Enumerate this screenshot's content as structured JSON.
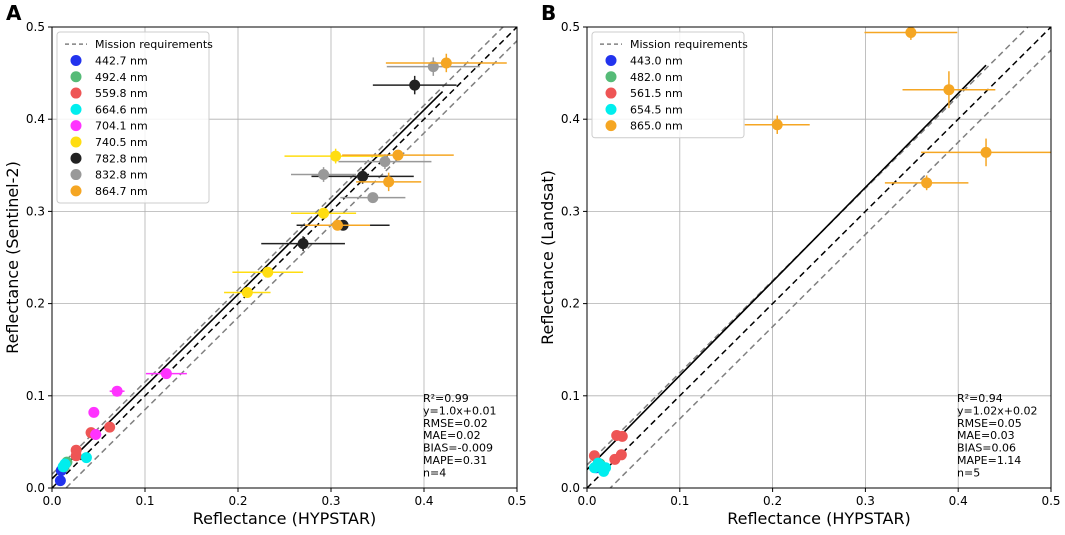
{
  "chart_data": [
    {
      "panel_label": "A",
      "type": "scatter",
      "xlabel": "Reflectance (HYPSTAR)",
      "ylabel": "Reflectance (Sentinel-2)",
      "xlim": [
        0,
        0.5
      ],
      "ylim": [
        0,
        0.5
      ],
      "xticks": [
        "0.0",
        "0.1",
        "0.2",
        "0.3",
        "0.4",
        "0.5"
      ],
      "yticks": [
        "0.0",
        "0.1",
        "0.2",
        "0.3",
        "0.4",
        "0.5"
      ],
      "grid": true,
      "legend_position": "top-left",
      "mission_label": "Mission requirements",
      "fit": {
        "slope": 1.0,
        "intercept": 0.01,
        "x_range": [
          0.0,
          0.42
        ]
      },
      "mission_band": [
        0.015,
        -0.015
      ],
      "series": [
        {
          "name": "442.7 nm",
          "color": "#2233ee",
          "points": [
            [
              0.009,
              0.008,
              0,
              0
            ],
            [
              0.01,
              0.019,
              0,
              0
            ]
          ]
        },
        {
          "name": "492.4 nm",
          "color": "#55bb77",
          "points": [
            [
              0.013,
              0.023,
              0,
              0
            ],
            [
              0.016,
              0.028,
              0,
              0
            ]
          ]
        },
        {
          "name": "559.8 nm",
          "color": "#ee5555",
          "points": [
            [
              0.026,
              0.035,
              0,
              0
            ],
            [
              0.026,
              0.041,
              0,
              0
            ],
            [
              0.042,
              0.06,
              0,
              0
            ],
            [
              0.062,
              0.066,
              0,
              0
            ]
          ]
        },
        {
          "name": "664.6 nm",
          "color": "#00eeee",
          "points": [
            [
              0.012,
              0.023,
              0.004,
              0
            ],
            [
              0.014,
              0.026,
              0.004,
              0
            ],
            [
              0.037,
              0.033,
              0.005,
              0
            ]
          ]
        },
        {
          "name": "704.1 nm",
          "color": "#ff33ff",
          "points": [
            [
              0.045,
              0.082,
              0.004,
              0.004
            ],
            [
              0.047,
              0.058,
              0.006,
              0
            ],
            [
              0.07,
              0.105,
              0.008,
              0
            ],
            [
              0.123,
              0.124,
              0.022,
              0
            ]
          ]
        },
        {
          "name": "740.5 nm",
          "color": "#ffdd11",
          "points": [
            [
              0.21,
              0.212,
              0.025,
              0
            ],
            [
              0.232,
              0.234,
              0.038,
              0
            ],
            [
              0.292,
              0.298,
              0.035,
              0
            ],
            [
              0.305,
              0.36,
              0.055,
              0.008
            ]
          ]
        },
        {
          "name": "782.8 nm",
          "color": "#222222",
          "points": [
            [
              0.27,
              0.265,
              0.045,
              0.008
            ],
            [
              0.313,
              0.285,
              0.05,
              0
            ],
            [
              0.334,
              0.338,
              0.055,
              0.008
            ],
            [
              0.39,
              0.437,
              0.045,
              0.01
            ]
          ]
        },
        {
          "name": "832.8 nm",
          "color": "#999999",
          "points": [
            [
              0.292,
              0.34,
              0.035,
              0.008
            ],
            [
              0.345,
              0.315,
              0.035,
              0
            ],
            [
              0.358,
              0.354,
              0.05,
              0.008
            ],
            [
              0.41,
              0.457,
              0.05,
              0.01
            ]
          ]
        },
        {
          "name": "864.7 nm",
          "color": "#f5a623",
          "points": [
            [
              0.307,
              0.285,
              0.035,
              0
            ],
            [
              0.362,
              0.332,
              0.035,
              0.01
            ],
            [
              0.372,
              0.361,
              0.06,
              0
            ],
            [
              0.424,
              0.461,
              0.065,
              0.01
            ]
          ]
        }
      ],
      "stats": [
        "R²=0.99",
        "y=1.0x+0.01",
        "RMSE=0.02",
        "MAE=0.02",
        "BIAS=-0.009",
        "MAPE=0.31",
        "n=4"
      ]
    },
    {
      "panel_label": "B",
      "type": "scatter",
      "xlabel": "Reflectance (HYPSTAR)",
      "ylabel": "Reflectance (Landsat)",
      "xlim": [
        0,
        0.5
      ],
      "ylim": [
        0,
        0.5
      ],
      "xticks": [
        "0.0",
        "0.1",
        "0.2",
        "0.3",
        "0.4",
        "0.5"
      ],
      "yticks": [
        "0.0",
        "0.1",
        "0.2",
        "0.3",
        "0.4",
        "0.5"
      ],
      "grid": true,
      "legend_position": "top-left",
      "mission_label": "Mission requirements",
      "fit": {
        "slope": 1.02,
        "intercept": 0.02,
        "x_range": [
          0.0,
          0.43
        ]
      },
      "mission_band": [
        0.025,
        -0.025
      ],
      "series": [
        {
          "name": "443.0 nm",
          "color": "#2233ee",
          "points": [
            [
              0.01,
              0.022,
              0,
              0
            ]
          ]
        },
        {
          "name": "482.0 nm",
          "color": "#55bb77",
          "points": [
            [
              0.014,
              0.026,
              0,
              0
            ]
          ]
        },
        {
          "name": "561.5 nm",
          "color": "#ee5555",
          "points": [
            [
              0.008,
              0.035,
              0,
              0
            ],
            [
              0.03,
              0.031,
              0,
              0
            ],
            [
              0.032,
              0.057,
              0,
              0
            ],
            [
              0.038,
              0.056,
              0,
              0
            ],
            [
              0.037,
              0.036,
              0,
              0
            ]
          ]
        },
        {
          "name": "654.5 nm",
          "color": "#00eeee",
          "points": [
            [
              0.008,
              0.022,
              0,
              0
            ],
            [
              0.012,
              0.027,
              0,
              0
            ],
            [
              0.015,
              0.024,
              0,
              0
            ],
            [
              0.018,
              0.018,
              0,
              0
            ],
            [
              0.02,
              0.022,
              0,
              0
            ]
          ]
        },
        {
          "name": "865.0 nm",
          "color": "#f5a623",
          "points": [
            [
              0.205,
              0.394,
              0.035,
              0.01
            ],
            [
              0.349,
              0.494,
              0.05,
              0.008
            ],
            [
              0.366,
              0.331,
              0.045,
              0.008
            ],
            [
              0.39,
              0.432,
              0.05,
              0.02
            ],
            [
              0.43,
              0.364,
              0.07,
              0.015
            ]
          ]
        }
      ],
      "stats": [
        "R²=0.94",
        "y=1.02x+0.02",
        "RMSE=0.05",
        "MAE=0.03",
        "BIAS=0.06",
        "MAPE=1.14",
        "n=5"
      ]
    }
  ]
}
